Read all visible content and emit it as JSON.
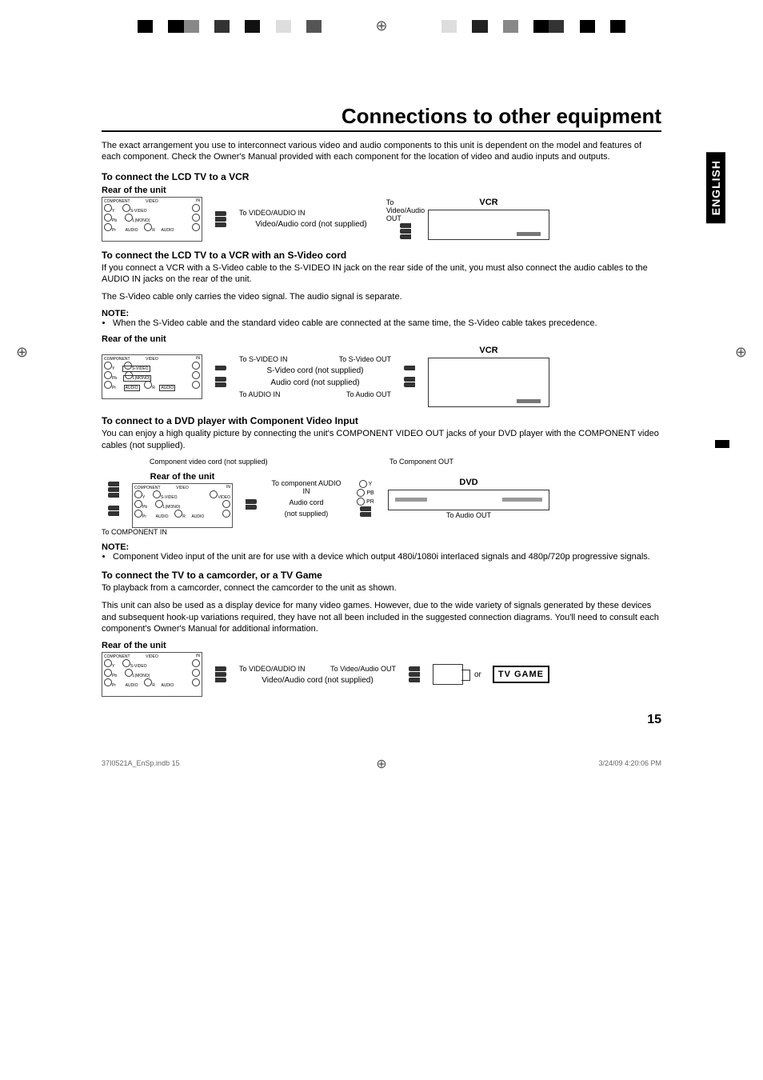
{
  "print": {
    "colorbar_left": [
      "#000000",
      "#ffffff",
      "#000000",
      "#888888",
      "#ffffff",
      "#333333",
      "#ffffff",
      "#111111",
      "#ffffff",
      "#dddddd",
      "#ffffff",
      "#555555"
    ],
    "colorbar_right": [
      "#dddddd",
      "#ffffff",
      "#222222",
      "#ffffff",
      "#888888",
      "#ffffff",
      "#000000",
      "#333333",
      "#ffffff",
      "#000000",
      "#ffffff",
      "#000000"
    ]
  },
  "title": "Connections to other equipment",
  "intro": "The exact arrangement you use to interconnect various video and audio components to this unit is dependent on the model and features of each component. Check the Owner's Manual provided with each component for the location of video and audio inputs and outputs.",
  "language_tab": "ENGLISH",
  "section1": {
    "heading": "To connect the LCD TV to a VCR",
    "rear_label": "Rear of the unit",
    "to_in": "To VIDEO/AUDIO IN",
    "cord": "Video/Audio cord (not supplied)",
    "to_out": "To Video/Audio OUT",
    "device": "VCR"
  },
  "section2": {
    "heading": "To connect the LCD TV to a VCR with an S-Video cord",
    "body1": "If you connect a VCR with a S-Video cable to the S-VIDEO IN jack on the rear side of the unit, you must also connect the audio cables to the AUDIO IN jacks on the rear of the unit.",
    "body2": "The S-Video cable only carries the video signal. The audio signal is separate.",
    "note_label": "NOTE:",
    "note_bullet": "When the S-Video cable and the standard video cable are connected at the same time, the S-Video cable takes precedence.",
    "rear_label": "Rear of the unit",
    "to_svideo_in": "To S-VIDEO IN",
    "to_svideo_out": "To S-Video OUT",
    "svideo_cord": "S-Video cord (not supplied)",
    "audio_cord": "Audio cord (not supplied)",
    "to_audio_in": "To AUDIO IN",
    "to_audio_out": "To Audio OUT",
    "device": "VCR"
  },
  "section3": {
    "heading": "To connect to a DVD player with Component Video Input",
    "body": "You can enjoy a high quality picture by connecting the unit's COMPONENT VIDEO OUT jacks of your DVD player with the COMPONENT video cables (not supplied).",
    "comp_cord": "Component video cord (not supplied)",
    "to_comp_out": "To Component OUT",
    "rear_label": "Rear of the unit",
    "to_comp_audio_in": "To component AUDIO IN",
    "audio_cord": "Audio cord",
    "not_supplied": "(not supplied)",
    "to_comp_in": "To COMPONENT IN",
    "to_audio_out": "To Audio OUT",
    "device": "DVD",
    "y": "Y",
    "pb": "PB",
    "pr": "PR",
    "note_label": "NOTE:",
    "note_bullet": "Component Video input of the unit are for use with a device which output 480i/1080i interlaced signals and 480p/720p progressive signals."
  },
  "section4": {
    "heading": "To connect the TV to a camcorder, or a TV Game",
    "body1": "To playback from a camcorder, connect the camcorder to the unit as shown.",
    "body2": "This unit can also be used as a display device for many video games. However, due to the wide variety of signals generated by these devices and subsequent hook-up variations required, they have not all been included in the suggested connection diagrams. You'll need to consult each component's Owner's Manual for additional information.",
    "rear_label": "Rear of the unit",
    "to_in": "To VIDEO/AUDIO IN",
    "to_out": "To Video/Audio OUT",
    "cord": "Video/Audio cord (not supplied)",
    "or": "or",
    "tvgame": "TV GAME"
  },
  "page_number": "15",
  "footer": {
    "left": "37I0521A_EnSp.indb   15",
    "right": "3/24/09   4:20:06 PM"
  },
  "rear_panel": {
    "component": "COMPONENT",
    "video": "VIDEO",
    "in": "IN",
    "svideo": "S-VIDEO",
    "lmono": "L(MONO)",
    "audio": "AUDIO",
    "r": "R",
    "y": "Y",
    "pb": "Pb",
    "pr": "Pr"
  }
}
